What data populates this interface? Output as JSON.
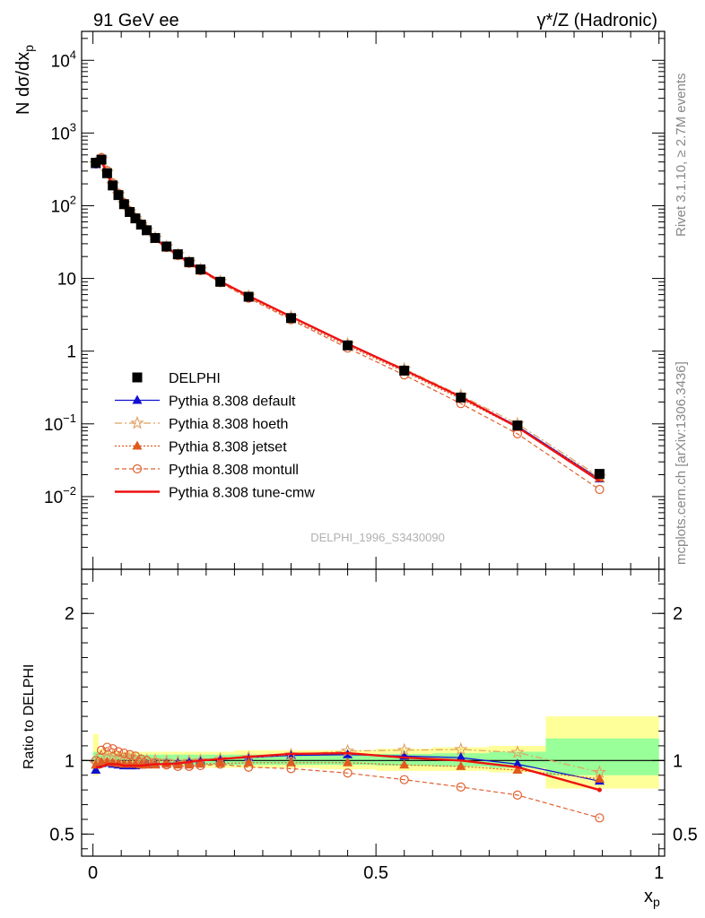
{
  "header": {
    "left": "91 GeV ee",
    "right": "γ*/Z (Hadronic)"
  },
  "side_text": {
    "rivet": "Rivet 3.1.10, ≥ 2.7M events",
    "mcplots": "mcplots.cern.ch [arXiv:1306.3436]"
  },
  "analysis_id": "DELPHI_1996_S3430090",
  "colors": {
    "data": "#000000",
    "default": "#1010d0",
    "hoeth": "#e0a060",
    "jetset": "#e05a1e",
    "montull": "#e06030",
    "cmw": "#ee1111",
    "band_green": "#99ff99",
    "band_yellow": "#ffff99"
  },
  "chart_data": [
    {
      "type": "scatter",
      "panel": "main",
      "ylabel": "N dσ/dx",
      "ylabel_sub": "p",
      "yscale": "log",
      "xlim": [
        -0.02,
        1.01
      ],
      "ylim": [
        0.001,
        25000
      ],
      "y_ticks": [
        {
          "value": 10000,
          "mant": "10",
          "exp": "4"
        },
        {
          "value": 1000,
          "mant": "10",
          "exp": "3"
        },
        {
          "value": 100,
          "mant": "10",
          "exp": "2"
        },
        {
          "value": 10,
          "mant": "10",
          "exp": ""
        },
        {
          "value": 1,
          "mant": "1",
          "exp": ""
        },
        {
          "value": 0.1,
          "mant": "10",
          "exp": "−1"
        },
        {
          "value": 0.01,
          "mant": "10",
          "exp": "−2"
        }
      ],
      "legend": [
        {
          "key": "data",
          "label": "DELPHI"
        },
        {
          "key": "default",
          "label": "Pythia 8.308 default"
        },
        {
          "key": "hoeth",
          "label": "Pythia 8.308 hoeth"
        },
        {
          "key": "jetset",
          "label": "Pythia 8.308 jetset"
        },
        {
          "key": "montull",
          "label": "Pythia 8.308 montull"
        },
        {
          "key": "cmw",
          "label": "Pythia 8.308 tune-cmw"
        }
      ],
      "x": [
        0.005,
        0.015,
        0.025,
        0.035,
        0.045,
        0.055,
        0.065,
        0.075,
        0.085,
        0.095,
        0.11,
        0.13,
        0.15,
        0.17,
        0.19,
        0.225,
        0.275,
        0.35,
        0.45,
        0.55,
        0.65,
        0.75,
        0.895
      ],
      "series": [
        {
          "key": "data",
          "name": "DELPHI",
          "values": [
            390,
            430,
            280,
            190,
            140,
            105,
            82,
            67,
            55,
            46,
            36,
            27.5,
            21.5,
            16.8,
            13.3,
            9.0,
            5.6,
            2.85,
            1.2,
            0.54,
            0.23,
            0.095,
            0.0205
          ]
        },
        {
          "key": "default",
          "name": "Pythia 8.308 default",
          "values": [
            365,
            415,
            272,
            184,
            136,
            102,
            80,
            65,
            53.5,
            44.8,
            35.2,
            27.0,
            21.2,
            16.7,
            13.3,
            9.1,
            5.7,
            2.95,
            1.24,
            0.55,
            0.235,
            0.093,
            0.0175
          ]
        },
        {
          "key": "hoeth",
          "name": "Pythia 8.308 hoeth",
          "values": [
            380,
            440,
            290,
            196,
            143,
            107,
            83,
            67.5,
            55.5,
            46.2,
            36.0,
            27.3,
            21.3,
            16.7,
            13.3,
            9.1,
            5.7,
            2.96,
            1.25,
            0.57,
            0.245,
            0.1,
            0.0188
          ]
        },
        {
          "key": "jetset",
          "name": "Pythia 8.308 jetset",
          "values": [
            375,
            425,
            278,
            187,
            137,
            102,
            80,
            65,
            53.2,
            44.5,
            34.9,
            26.8,
            20.9,
            16.3,
            13.0,
            8.8,
            5.5,
            2.8,
            1.18,
            0.52,
            0.22,
            0.089,
            0.0179
          ]
        },
        {
          "key": "montull",
          "name": "Pythia 8.308 montull",
          "values": [
            385,
            460,
            305,
            205,
            148,
            110,
            85,
            68.5,
            55.6,
            46.0,
            35.4,
            26.6,
            20.6,
            16.1,
            12.8,
            8.75,
            5.35,
            2.7,
            1.1,
            0.47,
            0.19,
            0.073,
            0.0125
          ]
        },
        {
          "key": "cmw",
          "name": "Pythia 8.308 tune-cmw",
          "values": [
            372,
            410,
            272,
            185,
            136,
            101,
            79,
            64.5,
            53.0,
            44.5,
            35.0,
            26.8,
            21.0,
            16.6,
            13.3,
            9.1,
            5.75,
            2.98,
            1.26,
            0.55,
            0.235,
            0.09,
            0.0164
          ]
        }
      ]
    },
    {
      "type": "scatter",
      "panel": "ratio",
      "ylabel": "Ratio to DELPHI",
      "xlabel": "x",
      "xlabel_sub": "p",
      "xlim": [
        -0.02,
        1.01
      ],
      "ylim": [
        0.35,
        2.3
      ],
      "x_ticks": [
        {
          "value": 0,
          "label": "0"
        },
        {
          "value": 0.5,
          "label": "0.5"
        },
        {
          "value": 1,
          "label": "1"
        }
      ],
      "y_ticks": [
        {
          "value": 0.5,
          "label": "0.5"
        },
        {
          "value": 1,
          "label": "1"
        },
        {
          "value": 2,
          "label": "2"
        }
      ],
      "x": [
        0.005,
        0.015,
        0.025,
        0.035,
        0.045,
        0.055,
        0.065,
        0.075,
        0.085,
        0.095,
        0.11,
        0.13,
        0.15,
        0.17,
        0.19,
        0.225,
        0.275,
        0.35,
        0.45,
        0.55,
        0.65,
        0.75,
        0.895
      ],
      "bands": {
        "edges": [
          0,
          0.01,
          0.02,
          0.03,
          0.04,
          0.05,
          0.06,
          0.07,
          0.08,
          0.09,
          0.1,
          0.12,
          0.14,
          0.16,
          0.18,
          0.2,
          0.25,
          0.3,
          0.4,
          0.5,
          0.6,
          0.7,
          0.8,
          1.0
        ],
        "green": [
          [
            0.96,
            1.06
          ],
          [
            0.97,
            1.05
          ],
          [
            0.97,
            1.04
          ],
          [
            0.97,
            1.04
          ],
          [
            0.97,
            1.04
          ],
          [
            0.97,
            1.04
          ],
          [
            0.97,
            1.04
          ],
          [
            0.97,
            1.04
          ],
          [
            0.97,
            1.04
          ],
          [
            0.97,
            1.04
          ],
          [
            0.97,
            1.04
          ],
          [
            0.97,
            1.04
          ],
          [
            0.97,
            1.04
          ],
          [
            0.97,
            1.04
          ],
          [
            0.97,
            1.04
          ],
          [
            0.97,
            1.04
          ],
          [
            0.97,
            1.04
          ],
          [
            0.97,
            1.04
          ],
          [
            0.97,
            1.04
          ],
          [
            0.965,
            1.045
          ],
          [
            0.96,
            1.05
          ],
          [
            0.95,
            1.06
          ],
          [
            0.9,
            1.15
          ]
        ],
        "yellow": [
          [
            0.9,
            1.18
          ],
          [
            0.95,
            1.08
          ],
          [
            0.96,
            1.06
          ],
          [
            0.96,
            1.06
          ],
          [
            0.96,
            1.06
          ],
          [
            0.96,
            1.06
          ],
          [
            0.96,
            1.06
          ],
          [
            0.96,
            1.06
          ],
          [
            0.96,
            1.06
          ],
          [
            0.96,
            1.06
          ],
          [
            0.96,
            1.06
          ],
          [
            0.96,
            1.06
          ],
          [
            0.96,
            1.06
          ],
          [
            0.96,
            1.06
          ],
          [
            0.96,
            1.06
          ],
          [
            0.95,
            1.06
          ],
          [
            0.95,
            1.07
          ],
          [
            0.95,
            1.07
          ],
          [
            0.94,
            1.07
          ],
          [
            0.93,
            1.08
          ],
          [
            0.93,
            1.09
          ],
          [
            0.92,
            1.1
          ],
          [
            0.81,
            1.3
          ]
        ]
      },
      "series": [
        {
          "key": "default",
          "name": "Pythia 8.308 default",
          "values": [
            0.935,
            0.98,
            0.985,
            0.975,
            0.97,
            0.965,
            0.965,
            0.965,
            0.97,
            0.975,
            0.975,
            0.98,
            0.985,
            0.99,
            1.0,
            1.01,
            1.02,
            1.035,
            1.04,
            1.03,
            1.02,
            0.975,
            0.86
          ]
        },
        {
          "key": "hoeth",
          "name": "Pythia 8.308 hoeth",
          "values": [
            0.98,
            1.03,
            1.035,
            1.03,
            1.02,
            1.015,
            1.01,
            1.005,
            1.0,
            1.0,
            1.0,
            0.995,
            0.99,
            0.995,
            1.0,
            1.01,
            1.02,
            1.04,
            1.065,
            1.07,
            1.075,
            1.055,
            0.92
          ]
        },
        {
          "key": "jetset",
          "name": "Pythia 8.308 jetset",
          "values": [
            0.97,
            0.99,
            0.99,
            0.985,
            0.98,
            0.975,
            0.975,
            0.975,
            0.97,
            0.97,
            0.97,
            0.975,
            0.97,
            0.97,
            0.975,
            0.98,
            0.985,
            0.985,
            0.985,
            0.97,
            0.96,
            0.935,
            0.875
          ]
        },
        {
          "key": "montull",
          "name": "Pythia 8.308 montull",
          "values": [
            1.0,
            1.07,
            1.09,
            1.08,
            1.06,
            1.05,
            1.04,
            1.03,
            1.01,
            1.0,
            0.985,
            0.97,
            0.96,
            0.96,
            0.965,
            0.975,
            0.955,
            0.945,
            0.915,
            0.87,
            0.82,
            0.765,
            0.61
          ]
        },
        {
          "key": "cmw",
          "name": "Pythia 8.308 tune-cmw",
          "values": [
            0.955,
            0.955,
            0.975,
            0.975,
            0.975,
            0.965,
            0.965,
            0.965,
            0.965,
            0.97,
            0.975,
            0.975,
            0.98,
            0.99,
            1.0,
            1.01,
            1.025,
            1.045,
            1.05,
            1.02,
            1.0,
            0.955,
            0.8
          ]
        }
      ]
    }
  ]
}
